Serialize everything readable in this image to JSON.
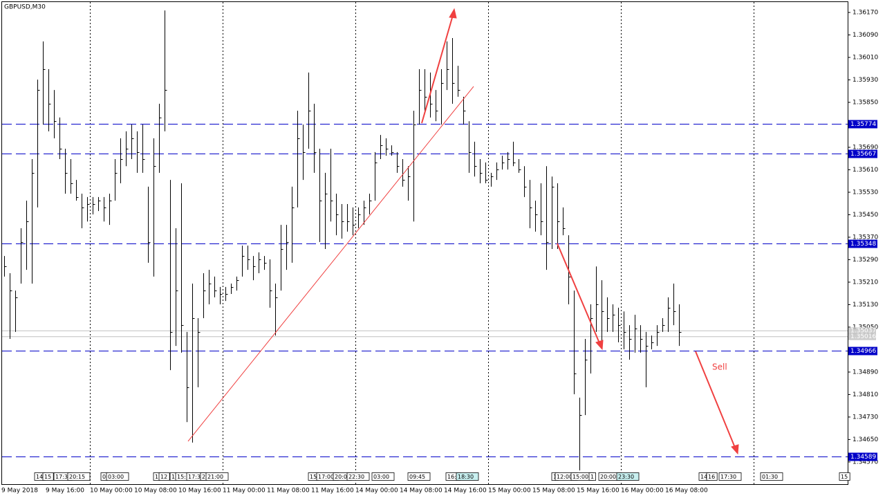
{
  "chart_data": {
    "type": "ohlc",
    "title": "GBPUSD,M30",
    "color": "#000000",
    "high": [
      1.35303,
      1.35242,
      1.3518,
      1.35402,
      1.355,
      1.35648,
      1.35931,
      1.36067,
      1.35968,
      1.35894,
      1.35796,
      1.35685,
      1.35648,
      1.35574,
      1.35525,
      1.35513,
      1.35513,
      1.35513,
      1.35513,
      1.35525,
      1.35648,
      1.35722,
      1.35747,
      1.35771,
      1.35747,
      1.35771,
      1.3555,
      1.35722,
      1.35845,
      1.36177,
      1.35574,
      1.35402,
      1.35562,
      1.35033,
      1.35205,
      1.35082,
      1.35242,
      1.35254,
      1.3523,
      1.35193,
      1.35193,
      1.35205,
      1.3523,
      1.3534,
      1.3534,
      1.35303,
      1.35316,
      1.35303,
      1.35291,
      1.35205,
      1.35414,
      1.35414,
      1.3555,
      1.3582,
      1.35771,
      1.35956,
      1.35845,
      1.35685,
      1.35599,
      1.35685,
      1.35525,
      1.35488,
      1.35488,
      1.35476,
      1.35476,
      1.355,
      1.35525,
      1.35673,
      1.35734,
      1.35722,
      1.35697,
      1.35673,
      1.35648,
      1.35623,
      1.3582,
      1.35968,
      1.35968,
      1.35956,
      1.35894,
      1.35968,
      1.36067,
      1.36079,
      1.3598,
      1.3587,
      1.35783,
      1.3571,
      1.35648,
      1.35636,
      1.35599,
      1.35636,
      1.3566,
      1.35673,
      1.3571,
      1.35648,
      1.35623,
      1.35574,
      1.355,
      1.35562,
      1.35623,
      1.35586,
      1.35562,
      1.35476,
      1.35377,
      1.3518,
      1.34799,
      1.35008,
      1.35131,
      1.35266,
      1.35217,
      1.35156,
      1.35131,
      1.35119,
      1.35106,
      1.35057,
      1.35094,
      1.35057,
      1.35033,
      1.3502,
      1.35057,
      1.35082,
      1.35156,
      1.35205,
      1.35131
    ],
    "low": [
      1.3523,
      1.35008,
      1.35033,
      1.35205,
      1.35254,
      1.35205,
      1.35476,
      1.35771,
      1.35747,
      1.35722,
      1.35648,
      1.35525,
      1.35525,
      1.355,
      1.35402,
      1.35426,
      1.35451,
      1.35463,
      1.35426,
      1.35414,
      1.355,
      1.35562,
      1.35623,
      1.35648,
      1.35599,
      1.35599,
      1.35279,
      1.3523,
      1.35599,
      1.35747,
      1.34897,
      1.34983,
      1.34959,
      1.34712,
      1.34639,
      1.34836,
      1.35082,
      1.35131,
      1.35156,
      1.35131,
      1.35143,
      1.35168,
      1.3518,
      1.3523,
      1.35254,
      1.35217,
      1.35242,
      1.35254,
      1.35119,
      1.3502,
      1.3518,
      1.35254,
      1.35279,
      1.35476,
      1.35574,
      1.35685,
      1.35599,
      1.35353,
      1.35328,
      1.35426,
      1.35377,
      1.35365,
      1.3539,
      1.35377,
      1.35402,
      1.35414,
      1.35451,
      1.355,
      1.35648,
      1.3566,
      1.3566,
      1.35599,
      1.3555,
      1.355,
      1.35426,
      1.35771,
      1.3582,
      1.35796,
      1.35783,
      1.35771,
      1.35894,
      1.35845,
      1.3587,
      1.35771,
      1.35599,
      1.35586,
      1.35562,
      1.35562,
      1.3555,
      1.35574,
      1.35611,
      1.35611,
      1.35623,
      1.35599,
      1.35513,
      1.35402,
      1.3539,
      1.35377,
      1.35254,
      1.35328,
      1.35328,
      1.35377,
      1.35131,
      1.34811,
      1.3454,
      1.34737,
      1.34885,
      1.35033,
      1.34996,
      1.35033,
      1.35033,
      1.34996,
      1.34971,
      1.34934,
      1.34959,
      1.34959,
      1.34836,
      1.34971,
      1.34983,
      1.35033,
      1.35033,
      1.35057,
      1.34983
    ],
    "close": [
      1.35266,
      1.3518,
      1.35156,
      1.35353,
      1.35426,
      1.35599,
      1.35894,
      1.35968,
      1.35845,
      1.35783,
      1.35685,
      1.35599,
      1.35562,
      1.35513,
      1.35476,
      1.35488,
      1.35488,
      1.355,
      1.35476,
      1.355,
      1.35599,
      1.35648,
      1.35685,
      1.35722,
      1.35673,
      1.35648,
      1.35353,
      1.35623,
      1.35796,
      1.35894,
      1.35033,
      1.3518,
      1.35057,
      1.34836,
      1.35082,
      1.35033,
      1.3518,
      1.35205,
      1.3518,
      1.35168,
      1.35168,
      1.35193,
      1.35217,
      1.35303,
      1.35291,
      1.35266,
      1.35291,
      1.35279,
      1.3518,
      1.35156,
      1.35328,
      1.35353,
      1.35476,
      1.35722,
      1.35673,
      1.3582,
      1.35673,
      1.355,
      1.35525,
      1.355,
      1.35451,
      1.35426,
      1.35426,
      1.35414,
      1.35451,
      1.35476,
      1.355,
      1.35636,
      1.35697,
      1.35685,
      1.35673,
      1.35623,
      1.35574,
      1.35586,
      1.35771,
      1.35894,
      1.3587,
      1.35845,
      1.3582,
      1.35919,
      1.35968,
      1.35919,
      1.35894,
      1.3582,
      1.35673,
      1.35623,
      1.35599,
      1.35574,
      1.35586,
      1.35611,
      1.35636,
      1.35648,
      1.35636,
      1.35611,
      1.3555,
      1.35476,
      1.35451,
      1.35426,
      1.35353,
      1.3555,
      1.35426,
      1.35402,
      1.3523,
      1.34885,
      1.34737,
      1.34934,
      1.35082,
      1.35131,
      1.35106,
      1.35082,
      1.35094,
      1.35057,
      1.35033,
      1.35008,
      1.35045,
      1.35008,
      1.34983,
      1.34996,
      1.35033,
      1.35057,
      1.35119,
      1.35106,
      1.35033
    ],
    "ylim": [
      1.34491,
      1.3617
    ],
    "yticks": [
      {
        "value": 1.3617,
        "label": "1.36170"
      },
      {
        "value": 1.3609,
        "label": "1.36090"
      },
      {
        "value": 1.3601,
        "label": "1.36010"
      },
      {
        "value": 1.3593,
        "label": "1.35930"
      },
      {
        "value": 1.3585,
        "label": "1.35850"
      },
      {
        "value": 1.3569,
        "label": "1.35690"
      },
      {
        "value": 1.3561,
        "label": "1.35610"
      },
      {
        "value": 1.3553,
        "label": "1.35530"
      },
      {
        "value": 1.3545,
        "label": "1.35450"
      },
      {
        "value": 1.3537,
        "label": "1.35370"
      },
      {
        "value": 1.3529,
        "label": "1.35290"
      },
      {
        "value": 1.3521,
        "label": "1.35210"
      },
      {
        "value": 1.3513,
        "label": "1.35130"
      },
      {
        "value": 1.3505,
        "label": "1.35050"
      },
      {
        "value": 1.3489,
        "label": "1.34890"
      },
      {
        "value": 1.3481,
        "label": "1.34810"
      },
      {
        "value": 1.3473,
        "label": "1.34730"
      },
      {
        "value": 1.3465,
        "label": "1.34650"
      },
      {
        "value": 1.3457,
        "label": "1.34570"
      }
    ],
    "levels": [
      1.35774,
      1.35667,
      1.35348,
      1.34966,
      1.34589
    ],
    "level_color": "#0000c8",
    "price_lines": [
      1.35037,
      1.35016
    ],
    "x_labels": [
      "9 May 2018",
      "9 May 16:00",
      "10 May 00:00",
      "10 May 08:00",
      "10 May 16:00",
      "11 May 00:00",
      "11 May 08:00",
      "11 May 16:00",
      "14 May 00:00",
      "14 May 08:00",
      "14 May 16:00",
      "15 May 00:00",
      "15 May 08:00",
      "15 May 16:00",
      "16 May 00:00",
      "16 May 08:00"
    ],
    "time_markers": [
      "14",
      "15",
      "17:3",
      "20:15",
      "0",
      "03:00",
      "1",
      "12",
      "1",
      "15:",
      "17:3",
      "2",
      "21:00",
      "15",
      "17:00",
      "20:0",
      "22:30",
      "03:00",
      "09:45",
      "16:",
      "18:30",
      "1",
      "12:00",
      "15:00",
      "1",
      "20:00",
      "23:30",
      "14",
      "16",
      "17:30",
      "01:30",
      "15"
    ],
    "annotation": "Sell"
  }
}
